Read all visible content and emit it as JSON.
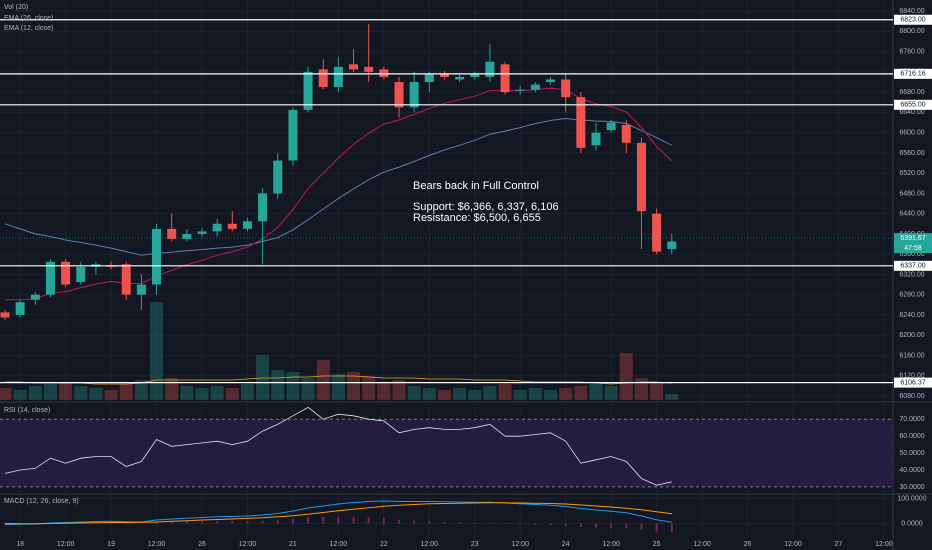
{
  "chart_data": {
    "type": "candlestick",
    "xlim": [
      -0.33,
      58.6
    ],
    "xticks": [
      {
        "value": 1,
        "label": "18"
      },
      {
        "value": 4,
        "label": "12:00"
      },
      {
        "value": 7,
        "label": "19"
      },
      {
        "value": 10,
        "label": "12:00"
      },
      {
        "value": 13,
        "label": "26"
      },
      {
        "value": 16,
        "label": "12:00"
      },
      {
        "value": 19,
        "label": "21"
      },
      {
        "value": 22,
        "label": "12:00"
      },
      {
        "value": 25,
        "label": "22"
      },
      {
        "value": 28,
        "label": "12:00"
      },
      {
        "value": 31,
        "label": "23"
      },
      {
        "value": 34,
        "label": "12:00"
      },
      {
        "value": 37,
        "label": "24"
      },
      {
        "value": 40,
        "label": "12:00"
      },
      {
        "value": 43,
        "label": "25"
      },
      {
        "value": 46,
        "label": "12:00"
      },
      {
        "value": 49,
        "label": "26"
      },
      {
        "value": 52,
        "label": "12:00"
      },
      {
        "value": 55,
        "label": "27"
      },
      {
        "value": 58,
        "label": "12:00"
      }
    ],
    "ylim": [
      6072,
      6862
    ],
    "yticks": [
      {
        "value": 6840,
        "label": "6840.00"
      },
      {
        "value": 6800,
        "label": "6800.00"
      },
      {
        "value": 6760,
        "label": "6760.00"
      },
      {
        "value": 6720,
        "label": "6720.00"
      },
      {
        "value": 6680,
        "label": "6680.00"
      },
      {
        "value": 6640,
        "label": "6640.00"
      },
      {
        "value": 6600,
        "label": "6600.00"
      },
      {
        "value": 6560,
        "label": "6560.00"
      },
      {
        "value": 6520,
        "label": "6520.00"
      },
      {
        "value": 6480,
        "label": "6480.00"
      },
      {
        "value": 6440,
        "label": "6440.00"
      },
      {
        "value": 6400,
        "label": "6400.00"
      },
      {
        "value": 6360,
        "label": "6360.00"
      },
      {
        "value": 6320,
        "label": "6320.00"
      },
      {
        "value": 6280,
        "label": "6280.00"
      },
      {
        "value": 6240,
        "label": "6240.00"
      },
      {
        "value": 6200,
        "label": "6200.00"
      },
      {
        "value": 6160,
        "label": "6160.00"
      },
      {
        "value": 6120,
        "label": "6120.00"
      },
      {
        "value": 6080,
        "label": "6080.00"
      }
    ],
    "grid": true,
    "up_color": "#26a69a",
    "down_color": "#ef5350",
    "open": [
      6245,
      6240,
      6270,
      6280,
      6345,
      6305,
      6335,
      6338,
      6340,
      6280,
      6300,
      6410,
      6390,
      6400,
      6405,
      6420,
      6410,
      6425,
      6480,
      6545,
      6645,
      6725,
      6690,
      6735,
      6730,
      6725,
      6700,
      6650,
      6700,
      6715,
      6705,
      6710,
      6710,
      6735,
      6685,
      6685,
      6700,
      6705,
      6670,
      6575,
      6605,
      6615,
      6580,
      6440,
      6370
    ],
    "high": [
      6250,
      6270,
      6285,
      6350,
      6350,
      6345,
      6345,
      6345,
      6345,
      6320,
      6420,
      6440,
      6410,
      6412,
      6430,
      6445,
      6432,
      6490,
      6560,
      6650,
      6730,
      6745,
      6750,
      6765,
      6815,
      6730,
      6710,
      6720,
      6720,
      6722,
      6715,
      6720,
      6775,
      6740,
      6692,
      6700,
      6710,
      6715,
      6680,
      6620,
      6625,
      6625,
      6590,
      6450,
      6400
    ],
    "low": [
      6230,
      6235,
      6260,
      6275,
      6295,
      6300,
      6320,
      6330,
      6270,
      6250,
      6280,
      6385,
      6385,
      6395,
      6395,
      6405,
      6405,
      6340,
      6470,
      6535,
      6640,
      6685,
      6680,
      6720,
      6700,
      6705,
      6630,
      6640,
      6680,
      6705,
      6700,
      6705,
      6700,
      6675,
      6675,
      6680,
      6695,
      6640,
      6560,
      6565,
      6600,
      6560,
      6370,
      6360,
      6360
    ],
    "close": [
      6235,
      6265,
      6280,
      6345,
      6300,
      6335,
      6340,
      6335,
      6280,
      6300,
      6410,
      6390,
      6400,
      6405,
      6420,
      6410,
      6425,
      6480,
      6545,
      6645,
      6720,
      6690,
      6730,
      6725,
      6720,
      6710,
      6650,
      6700,
      6715,
      6710,
      6710,
      6715,
      6740,
      6680,
      6685,
      6695,
      6705,
      6670,
      6570,
      6600,
      6620,
      6580,
      6445,
      6365,
      6385
    ],
    "series": [
      {
        "name": "EMA (26, close)",
        "color": "#5d7fb3",
        "values": [
          6420,
          6410,
          6400,
          6395,
          6388,
          6383,
          6378,
          6372,
          6365,
          6358,
          6362,
          6364,
          6367,
          6369,
          6372,
          6374,
          6378,
          6385,
          6393,
          6408,
          6428,
          6449,
          6470,
          6489,
          6507,
          6522,
          6532,
          6543,
          6555,
          6566,
          6575,
          6585,
          6597,
          6603,
          6610,
          6618,
          6624,
          6628,
          6625,
          6623,
          6622,
          6618,
          6604,
          6590,
          6575
        ]
      },
      {
        "name": "EMA (12, close)",
        "color": "#c2185b",
        "values": [
          6270,
          6270,
          6272,
          6283,
          6286,
          6294,
          6301,
          6306,
          6302,
          6302,
          6317,
          6328,
          6339,
          6348,
          6358,
          6365,
          6374,
          6390,
          6413,
          6448,
          6490,
          6520,
          6550,
          6577,
          6599,
          6617,
          6625,
          6636,
          6648,
          6658,
          6665,
          6672,
          6683,
          6683,
          6683,
          6685,
          6688,
          6685,
          6667,
          6657,
          6651,
          6641,
          6610,
          6573,
          6544
        ]
      }
    ],
    "volume": {
      "name": "Vol (20)",
      "ylim": [
        0,
        100
      ],
      "ma_color": "#f5a623",
      "values": [
        12,
        10,
        14,
        16,
        18,
        14,
        12,
        10,
        16,
        20,
        98,
        22,
        14,
        12,
        14,
        12,
        16,
        45,
        30,
        28,
        22,
        40,
        26,
        28,
        24,
        18,
        20,
        14,
        12,
        10,
        12,
        10,
        14,
        16,
        10,
        12,
        10,
        12,
        14,
        16,
        14,
        47,
        22,
        18,
        6
      ],
      "ma": [
        18,
        18,
        17,
        17,
        17,
        17,
        16,
        16,
        16,
        17,
        20,
        20,
        20,
        20,
        20,
        20,
        21,
        22,
        22,
        23,
        23,
        24,
        24,
        24,
        23,
        22,
        22,
        22,
        21,
        21,
        21,
        20,
        20,
        20,
        19,
        18,
        18,
        18,
        18,
        17,
        16,
        17,
        18,
        18,
        17
      ]
    },
    "levels": [
      {
        "value": 6823,
        "label": "6823.00"
      },
      {
        "value": 6716.16,
        "label": "6716.16"
      },
      {
        "value": 6655,
        "label": "6655.00"
      },
      {
        "value": 6337,
        "label": "6337.00"
      },
      {
        "value": 6106.37,
        "label": "6106.37"
      }
    ],
    "last_price": {
      "value": 6391.67,
      "label": "6391.67",
      "countdown": "47:58"
    },
    "annotation": {
      "title": "Bears back in Full Control",
      "lines": [
        "Support: $6,366, 6,337, 6,106",
        "Resistance: $6,500, 6,655"
      ]
    },
    "rsi": {
      "name": "RSI (14, close)",
      "color": "#e0e3eb",
      "band_color": "#2a1f4a",
      "ylim": [
        27,
        79
      ],
      "yticks": [
        {
          "value": 70,
          "label": "70.0000"
        },
        {
          "value": 60,
          "label": "60.0000"
        },
        {
          "value": 50,
          "label": "50.0000"
        },
        {
          "value": 40,
          "label": "40.0000"
        },
        {
          "value": 30,
          "label": "30.0000"
        }
      ],
      "values": [
        38,
        40,
        41,
        47,
        44,
        47,
        48,
        48,
        42,
        45,
        58,
        54,
        55,
        56,
        57,
        55,
        57,
        63,
        67,
        72,
        77,
        70,
        73,
        72,
        70,
        69,
        62,
        64,
        65,
        64,
        64,
        65,
        67,
        60,
        60,
        61,
        62,
        57,
        44,
        46,
        48,
        45,
        35,
        31,
        33
      ]
    },
    "macd": {
      "name": "MACD (12, 26, close, 9)",
      "ylim": [
        -90,
        110
      ],
      "macd_color": "#2196f3",
      "signal_color": "#ff9800",
      "hist_color": "#9c2772",
      "yticks": [
        {
          "value": 100,
          "label": "100.0000"
        },
        {
          "value": 0,
          "label": "0.0000"
        }
      ],
      "macd": [
        -5,
        -3,
        -2,
        2,
        4,
        6,
        8,
        9,
        7,
        6,
        14,
        18,
        21,
        24,
        27,
        28,
        30,
        34,
        40,
        50,
        62,
        70,
        78,
        84,
        88,
        90,
        88,
        88,
        88,
        87,
        86,
        85,
        85,
        82,
        79,
        76,
        73,
        68,
        60,
        54,
        49,
        43,
        30,
        15,
        5
      ],
      "signal": [
        0,
        -1,
        -1,
        0,
        1,
        2,
        3,
        4,
        4,
        5,
        6,
        9,
        11,
        14,
        16,
        18,
        21,
        23,
        27,
        31,
        37,
        44,
        51,
        57,
        63,
        69,
        73,
        76,
        79,
        80,
        81,
        82,
        83,
        83,
        82,
        81,
        80,
        78,
        74,
        70,
        66,
        61,
        55,
        47,
        39
      ],
      "histogram": [
        -5,
        -2,
        -1,
        2,
        3,
        4,
        5,
        5,
        3,
        1,
        8,
        9,
        10,
        10,
        11,
        10,
        9,
        11,
        13,
        19,
        25,
        26,
        27,
        27,
        25,
        21,
        15,
        12,
        9,
        7,
        5,
        3,
        2,
        -1,
        -3,
        -5,
        -7,
        -10,
        -14,
        -16,
        -17,
        -18,
        -25,
        -32,
        -34
      ]
    }
  }
}
